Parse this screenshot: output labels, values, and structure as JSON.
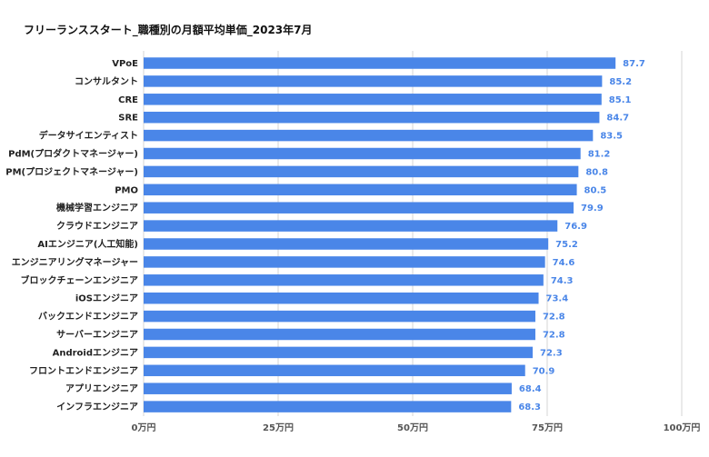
{
  "chart_data": {
    "type": "bar",
    "orientation": "horizontal",
    "title": "フリーランススタート_職種別の月額平均単価_2023年7月",
    "categories": [
      "VPoE",
      "コンサルタント",
      "CRE",
      "SRE",
      "データサイエンティスト",
      "PdM(プロダクトマネージャー)",
      "PM(プロジェクトマネージャー)",
      "PMO",
      "機械学習エンジニア",
      "クラウドエンジニア",
      "AIエンジニア(人工知能)",
      "エンジニアリングマネージャー",
      "ブロックチェーンエンジニア",
      "iOSエンジニア",
      "バックエンドエンジニア",
      "サーバーエンジニア",
      "Androidエンジニア",
      "フロントエンドエンジニア",
      "アプリエンジニア",
      "インフラエンジニア"
    ],
    "values": [
      87.7,
      85.2,
      85.1,
      84.7,
      83.5,
      81.2,
      80.8,
      80.5,
      79.9,
      76.9,
      75.2,
      74.6,
      74.3,
      73.4,
      72.8,
      72.8,
      72.3,
      70.9,
      68.4,
      68.3
    ],
    "value_labels": [
      "87.7",
      "85.2",
      "85.1",
      "84.7",
      "83.5",
      "81.2",
      "80.8",
      "80.5",
      "79.9",
      "76.9",
      "75.2",
      "74.6",
      "74.3",
      "73.4",
      "72.8",
      "72.8",
      "72.3",
      "70.9",
      "68.4",
      "68.3"
    ],
    "xlim": [
      0,
      100
    ],
    "xticks": [
      0,
      25,
      50,
      75,
      100
    ],
    "xtick_labels": [
      "0万円",
      "25万円",
      "50万円",
      "75万円",
      "100万円"
    ],
    "bar_color": "#4a86e8",
    "label_color": "#4a86e8",
    "grid": true
  }
}
